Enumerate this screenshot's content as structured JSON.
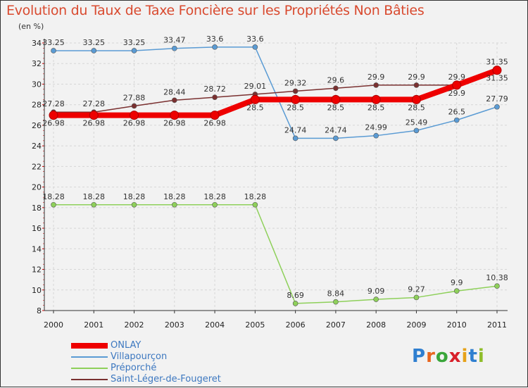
{
  "chart_data": {
    "type": "line",
    "title": "Evolution du Taux de Taxe Foncière sur les Propriétés Non Bâties",
    "ylabel": "(en %)",
    "xlabel": "",
    "categories": [
      "2000",
      "2001",
      "2002",
      "2003",
      "2004",
      "2005",
      "2006",
      "2007",
      "2008",
      "2009",
      "2010",
      "2011"
    ],
    "ylim": [
      8,
      34
    ],
    "yticks": [
      8,
      10,
      12,
      14,
      16,
      18,
      20,
      22,
      24,
      26,
      28,
      30,
      32,
      34
    ],
    "grid": true,
    "series": [
      {
        "name": "Villapourçon",
        "color": "#5a9bd4",
        "values": [
          33.25,
          33.25,
          33.25,
          33.47,
          33.6,
          33.6,
          24.74,
          24.74,
          24.99,
          25.49,
          26.5,
          27.79
        ],
        "labels": [
          "33.25",
          "33.25",
          "33.25",
          "33.47",
          "33.6",
          "33.6",
          "24.74",
          "24.74",
          "24.99",
          "25.49",
          "26.5",
          "27.79"
        ]
      },
      {
        "name": "Préporché",
        "color": "#8ed05a",
        "values": [
          18.28,
          18.28,
          18.28,
          18.28,
          18.28,
          18.28,
          8.69,
          8.84,
          9.09,
          9.27,
          9.9,
          10.38
        ],
        "labels": [
          "18.28",
          "18.28",
          "18.28",
          "18.28",
          "18.28",
          "18.28",
          "8.69",
          "8.84",
          "9.09",
          "9.27",
          "9.9",
          "10.38"
        ]
      },
      {
        "name": "Saint-Léger-de-Fougeret",
        "color": "#7a3030",
        "values": [
          27.28,
          27.28,
          27.88,
          28.44,
          28.72,
          29.01,
          29.32,
          29.6,
          29.9,
          29.9,
          29.9,
          31.35
        ],
        "labels": [
          "27.28",
          "27.28",
          "27.88",
          "28.44",
          "28.72",
          "29.01",
          "29.32",
          "29.6",
          "29.9",
          "29.9",
          "29.9",
          "31.35"
        ]
      },
      {
        "name": "ONLAY",
        "color": "#ee0000",
        "values": [
          26.98,
          26.98,
          26.98,
          26.98,
          26.98,
          28.5,
          28.5,
          28.5,
          28.5,
          28.5,
          29.9,
          31.35
        ],
        "labels": [
          "26.98",
          "26.98",
          "26.98",
          "26.98",
          "26.98",
          "28.5",
          "28.5",
          "28.5",
          "28.5",
          "28.5",
          "29.9",
          "31.35"
        ]
      }
    ],
    "legend_order": [
      "ONLAY",
      "Villapourçon",
      "Préporché",
      "Saint-Léger-de-Fougeret"
    ]
  },
  "brand": {
    "letters": [
      "P",
      "r",
      "o",
      "x",
      "i",
      "t",
      "i"
    ],
    "colors": [
      "#2f7fd0",
      "#e8661e",
      "#3aa63a",
      "#d8202a",
      "#e6a21a",
      "#2f7fd0",
      "#8fbd2a"
    ]
  }
}
